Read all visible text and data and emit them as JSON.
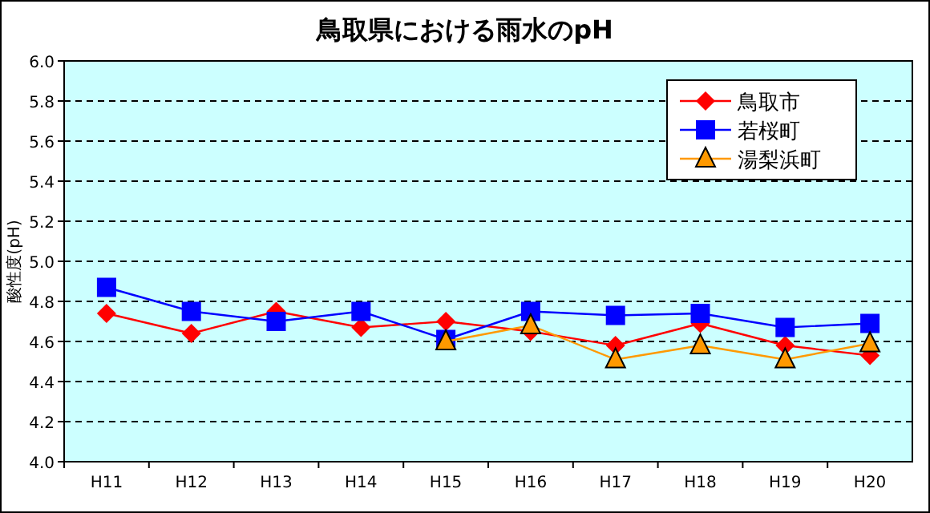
{
  "chart_data": {
    "type": "line",
    "title": "鳥取県における雨水のpH",
    "ylabel": "酸性度(pH)",
    "categories": [
      "H11",
      "H12",
      "H13",
      "H14",
      "H15",
      "H16",
      "H17",
      "H18",
      "H19",
      "H20"
    ],
    "series": [
      {
        "name": "鳥取市",
        "color": "#ff0000",
        "marker": "diamond",
        "values": [
          4.74,
          4.64,
          4.75,
          4.67,
          4.7,
          4.65,
          4.58,
          4.69,
          4.58,
          4.53
        ]
      },
      {
        "name": "若桜町",
        "color": "#0000ff",
        "marker": "square",
        "values": [
          4.87,
          4.75,
          4.7,
          4.75,
          4.61,
          4.75,
          4.73,
          4.74,
          4.67,
          4.69
        ]
      },
      {
        "name": "湯梨浜町",
        "color": "#ff9900",
        "marker": "triangle",
        "values": [
          null,
          null,
          null,
          null,
          4.6,
          4.68,
          4.51,
          4.58,
          4.51,
          4.59
        ]
      }
    ],
    "ylim": [
      4.0,
      6.0
    ],
    "yticks": [
      {
        "value": 4.0,
        "label": "4.0"
      },
      4.2,
      4.4,
      4.6,
      4.8,
      {
        "value": 5.0,
        "label": "5.0"
      },
      5.2,
      5.4,
      5.6,
      5.8,
      {
        "value": 6.0,
        "label": "6.0"
      }
    ],
    "grid": "y",
    "legend": "top right",
    "line_style": "solid"
  }
}
